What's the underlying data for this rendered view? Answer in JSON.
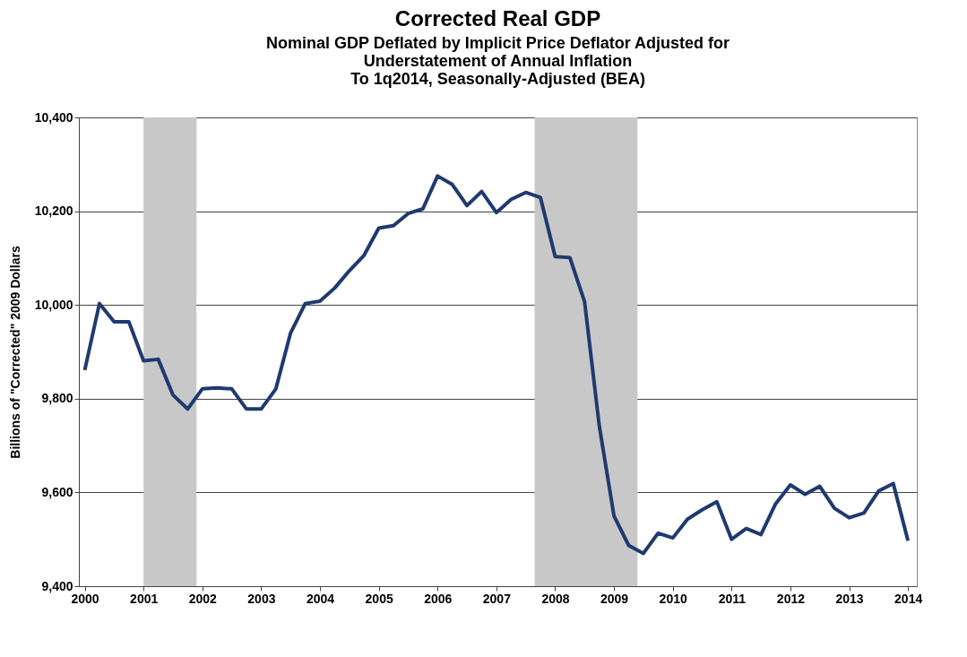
{
  "chart_data": {
    "type": "line",
    "title": "Corrected Real GDP",
    "subtitle": "Nominal GDP Deflated by Implicit Price Deflator Adjusted for\nUnderstatement of Annual Inflation\nTo 1q2014, Seasonally-Adjusted (BEA)",
    "ylabel": "Billions of \"Corrected\" 2009 Dollars",
    "x": [
      2000,
      2000.25,
      2000.5,
      2000.75,
      2001,
      2001.25,
      2001.5,
      2001.75,
      2002,
      2002.25,
      2002.5,
      2002.75,
      2003,
      2003.25,
      2003.5,
      2003.75,
      2004,
      2004.25,
      2004.5,
      2004.75,
      2005,
      2005.25,
      2005.5,
      2005.75,
      2006,
      2006.25,
      2006.5,
      2006.75,
      2007,
      2007.25,
      2007.5,
      2007.75,
      2008,
      2008.25,
      2008.5,
      2008.75,
      2009,
      2009.25,
      2009.5,
      2009.75,
      2010,
      2010.25,
      2010.5,
      2010.75,
      2011,
      2011.25,
      2011.5,
      2011.75,
      2012,
      2012.25,
      2012.5,
      2012.75,
      2013,
      2013.25,
      2013.5,
      2013.75,
      2014
    ],
    "series": [
      {
        "color": "#1f3a6e",
        "values": [
          9861,
          10003,
          9964,
          9964,
          9881,
          9884,
          9808,
          9778,
          9821,
          9823,
          9821,
          9778,
          9778,
          9821,
          9940,
          10003,
          10008,
          10036,
          10073,
          10106,
          10164,
          10169,
          10195,
          10205,
          10275,
          10257,
          10212,
          10242,
          10197,
          10225,
          10240,
          10229,
          10103,
          10101,
          10007,
          9742,
          9550,
          9487,
          9470,
          9513,
          9503,
          9543,
          9563,
          9580,
          9500,
          9523,
          9510,
          9576,
          9616,
          9596,
          9613,
          9566,
          9546,
          9556,
          9603,
          9619,
          9497
        ]
      }
    ],
    "xlim": [
      1999.9,
      2014.15
    ],
    "xticks": [
      2000,
      2001,
      2002,
      2003,
      2004,
      2005,
      2006,
      2007,
      2008,
      2009,
      2010,
      2011,
      2012,
      2013,
      2014
    ],
    "ylim": [
      9400,
      10400
    ],
    "yticks": [
      {
        "value": 9400,
        "label": "9,400"
      },
      {
        "value": 9600,
        "label": "9,600"
      },
      {
        "value": 9800,
        "label": "9,800"
      },
      {
        "value": 10000,
        "label": "10,000"
      },
      {
        "value": 10200,
        "label": "10,200"
      },
      {
        "value": 10400,
        "label": "10,400"
      }
    ],
    "bands": [
      {
        "axis": "x",
        "from": 2001.0,
        "to": 2001.9,
        "color": "#c8c8c8"
      },
      {
        "axis": "x",
        "from": 2007.65,
        "to": 2009.4,
        "color": "#c8c8c8"
      }
    ],
    "grid": "y",
    "line_style": "solid",
    "marker": "none"
  }
}
